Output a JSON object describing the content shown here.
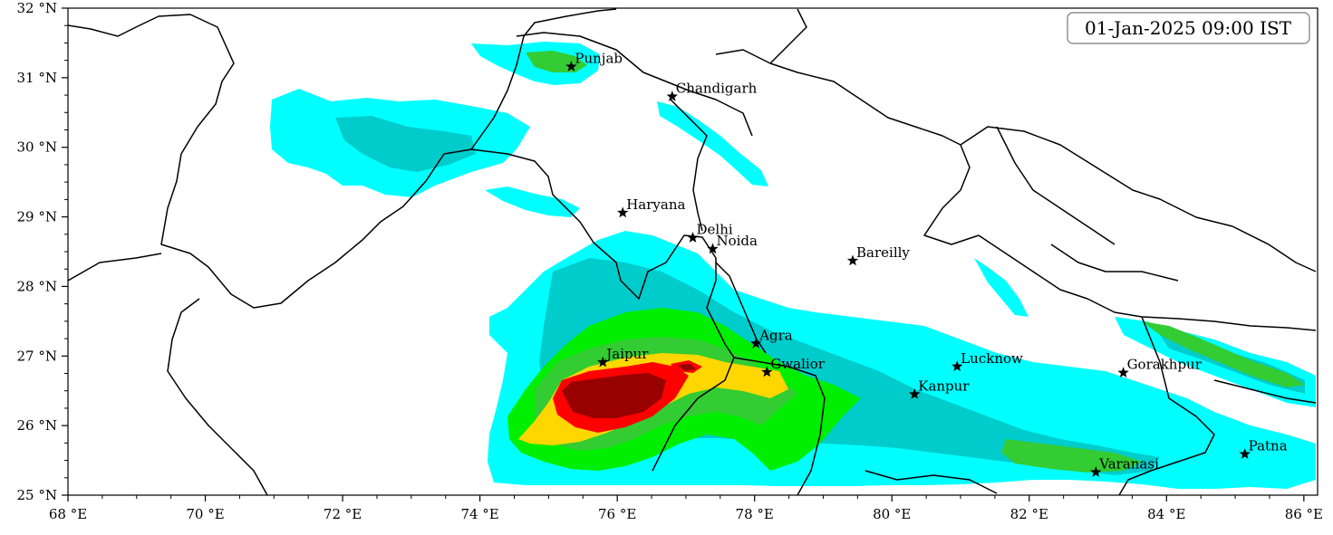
{
  "map": {
    "timestamp": "01-Jan-2025 09:00 IST",
    "extent": {
      "lon": [
        68,
        86.2
      ],
      "lat": [
        25,
        32
      ]
    },
    "x_ticks": [
      {
        "value": 68,
        "label": "68 °E"
      },
      {
        "value": 70,
        "label": "70 °E"
      },
      {
        "value": 72,
        "label": "72 °E"
      },
      {
        "value": 74,
        "label": "74 °E"
      },
      {
        "value": 76,
        "label": "76 °E"
      },
      {
        "value": 78,
        "label": "78 °E"
      },
      {
        "value": 80,
        "label": "80 °E"
      },
      {
        "value": 82,
        "label": "82 °E"
      },
      {
        "value": 84,
        "label": "84 °E"
      },
      {
        "value": 86,
        "label": "86 °E"
      }
    ],
    "y_ticks": [
      {
        "value": 25,
        "label": "25 °N"
      },
      {
        "value": 26,
        "label": "26 °N"
      },
      {
        "value": 27,
        "label": "27 °N"
      },
      {
        "value": 28,
        "label": "28 °N"
      },
      {
        "value": 29,
        "label": "29 °N"
      },
      {
        "value": 30,
        "label": "30 °N"
      },
      {
        "value": 31,
        "label": "31 °N"
      },
      {
        "value": 32,
        "label": "32 °N"
      }
    ],
    "cities": [
      {
        "name": "Punjab",
        "lon": 75.33,
        "lat": 31.16
      },
      {
        "name": "Chandigarh",
        "lon": 76.8,
        "lat": 30.73
      },
      {
        "name": "Haryana",
        "lon": 76.08,
        "lat": 29.06
      },
      {
        "name": "Delhi",
        "lon": 77.1,
        "lat": 28.7
      },
      {
        "name": "Noida",
        "lon": 77.39,
        "lat": 28.54
      },
      {
        "name": "Bareilly",
        "lon": 79.43,
        "lat": 28.37
      },
      {
        "name": "Agra",
        "lon": 78.02,
        "lat": 27.18
      },
      {
        "name": "Jaipur",
        "lon": 75.79,
        "lat": 26.91
      },
      {
        "name": "Gwalior",
        "lon": 78.18,
        "lat": 26.77
      },
      {
        "name": "Lucknow",
        "lon": 80.95,
        "lat": 26.85
      },
      {
        "name": "Kanpur",
        "lon": 80.33,
        "lat": 26.45
      },
      {
        "name": "Gorakhpur",
        "lon": 83.37,
        "lat": 26.76
      },
      {
        "name": "Varanasi",
        "lon": 82.97,
        "lat": 25.33
      },
      {
        "name": "Patna",
        "lon": 85.14,
        "lat": 25.59
      }
    ],
    "colors": {
      "level1": "#00ffff",
      "level2": "#00cccc",
      "level3": "#00ee00",
      "level4": "#33cc33",
      "level5": "#ffd700",
      "level6": "#ff0000",
      "level7": "#990000",
      "border": "#000000"
    }
  }
}
